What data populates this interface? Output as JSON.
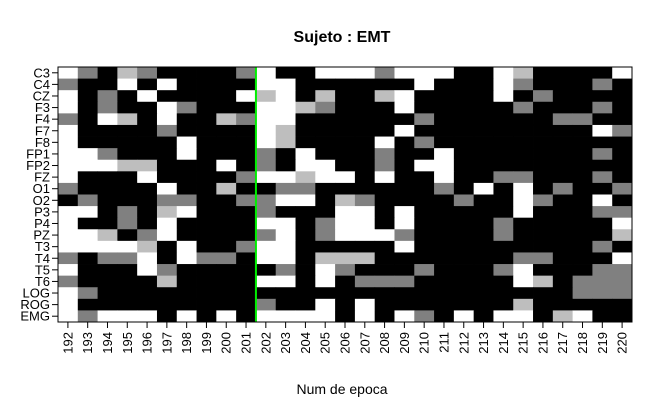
{
  "chart_data": {
    "type": "heatmap",
    "title": "Sujeto : EMT",
    "xlabel": "Num de epoca",
    "ylabel": "",
    "x": [
      "192",
      "193",
      "194",
      "195",
      "196",
      "197",
      "198",
      "199",
      "200",
      "201",
      "202",
      "203",
      "204",
      "205",
      "206",
      "207",
      "208",
      "209",
      "210",
      "211",
      "212",
      "213",
      "214",
      "215",
      "216",
      "217",
      "218",
      "219",
      "220"
    ],
    "y": [
      "C3",
      "C4",
      "CZ",
      "F3",
      "F4",
      "F7",
      "F8",
      "FP1",
      "FP2",
      "FZ",
      "O1",
      "O2",
      "P3",
      "P4",
      "PZ",
      "T3",
      "T4",
      "T5",
      "T6",
      "LOG",
      "ROG",
      "EMG"
    ],
    "palette": {
      "0": "#000000",
      "1": "#808080",
      "2": "#bebebe",
      "3": "#ffffff"
    },
    "values": [
      [
        3,
        1,
        0,
        2,
        1,
        0,
        0,
        0,
        0,
        1,
        3,
        0,
        0,
        3,
        3,
        3,
        1,
        3,
        3,
        3,
        0,
        0,
        3,
        2,
        0,
        0,
        0,
        0,
        3
      ],
      [
        1,
        0,
        0,
        3,
        0,
        3,
        0,
        0,
        0,
        0,
        3,
        3,
        0,
        0,
        0,
        0,
        0,
        0,
        3,
        0,
        0,
        0,
        3,
        1,
        0,
        0,
        0,
        1,
        0
      ],
      [
        3,
        0,
        1,
        0,
        3,
        0,
        0,
        0,
        0,
        3,
        2,
        3,
        0,
        2,
        0,
        0,
        2,
        3,
        0,
        0,
        0,
        0,
        3,
        0,
        1,
        0,
        0,
        0,
        0
      ],
      [
        3,
        0,
        1,
        0,
        0,
        3,
        1,
        0,
        0,
        0,
        3,
        3,
        2,
        1,
        0,
        0,
        0,
        3,
        0,
        0,
        0,
        0,
        0,
        1,
        0,
        0,
        0,
        1,
        0
      ],
      [
        1,
        0,
        3,
        2,
        0,
        3,
        0,
        0,
        2,
        1,
        3,
        3,
        0,
        0,
        0,
        0,
        0,
        0,
        1,
        0,
        0,
        0,
        0,
        0,
        0,
        1,
        1,
        0,
        0
      ],
      [
        3,
        0,
        0,
        0,
        0,
        1,
        0,
        0,
        0,
        0,
        3,
        2,
        0,
        0,
        0,
        0,
        0,
        3,
        0,
        0,
        0,
        0,
        0,
        0,
        0,
        0,
        0,
        3,
        1
      ],
      [
        3,
        0,
        0,
        0,
        0,
        0,
        3,
        0,
        0,
        0,
        3,
        2,
        0,
        0,
        0,
        0,
        3,
        0,
        1,
        0,
        0,
        0,
        0,
        0,
        0,
        0,
        0,
        0,
        0
      ],
      [
        3,
        3,
        1,
        0,
        0,
        0,
        3,
        0,
        0,
        0,
        1,
        0,
        3,
        0,
        0,
        0,
        1,
        0,
        0,
        3,
        0,
        0,
        0,
        0,
        0,
        0,
        0,
        1,
        0
      ],
      [
        3,
        3,
        3,
        2,
        2,
        0,
        0,
        0,
        3,
        0,
        1,
        0,
        3,
        3,
        0,
        0,
        1,
        0,
        3,
        3,
        0,
        0,
        0,
        0,
        0,
        0,
        0,
        0,
        0
      ],
      [
        3,
        0,
        0,
        0,
        3,
        0,
        0,
        0,
        0,
        1,
        3,
        3,
        2,
        3,
        3,
        0,
        3,
        0,
        0,
        3,
        0,
        0,
        1,
        1,
        0,
        0,
        0,
        1,
        0
      ],
      [
        1,
        0,
        0,
        0,
        0,
        3,
        0,
        0,
        2,
        0,
        0,
        1,
        1,
        0,
        0,
        0,
        0,
        0,
        0,
        1,
        0,
        3,
        0,
        3,
        0,
        1,
        0,
        0,
        1
      ],
      [
        0,
        1,
        0,
        0,
        0,
        1,
        1,
        0,
        0,
        1,
        1,
        3,
        3,
        0,
        2,
        1,
        0,
        0,
        0,
        0,
        1,
        0,
        0,
        3,
        1,
        0,
        0,
        3,
        0
      ],
      [
        3,
        3,
        0,
        1,
        0,
        2,
        3,
        0,
        0,
        0,
        1,
        0,
        0,
        0,
        3,
        3,
        0,
        3,
        0,
        0,
        0,
        0,
        0,
        3,
        0,
        0,
        0,
        1,
        1
      ],
      [
        3,
        0,
        0,
        1,
        0,
        3,
        0,
        0,
        0,
        0,
        3,
        3,
        0,
        1,
        3,
        3,
        0,
        3,
        0,
        0,
        0,
        0,
        1,
        0,
        0,
        0,
        0,
        0,
        3
      ],
      [
        3,
        3,
        2,
        0,
        1,
        3,
        0,
        0,
        0,
        0,
        1,
        3,
        0,
        1,
        3,
        3,
        3,
        1,
        0,
        0,
        0,
        0,
        1,
        0,
        0,
        0,
        0,
        0,
        2
      ],
      [
        3,
        3,
        3,
        3,
        2,
        0,
        3,
        0,
        0,
        1,
        3,
        3,
        0,
        0,
        0,
        0,
        0,
        3,
        0,
        0,
        0,
        0,
        0,
        0,
        0,
        0,
        0,
        1,
        0
      ],
      [
        1,
        0,
        1,
        1,
        3,
        0,
        3,
        1,
        1,
        0,
        3,
        3,
        0,
        2,
        2,
        2,
        0,
        0,
        0,
        0,
        0,
        0,
        0,
        1,
        1,
        0,
        0,
        0,
        3
      ],
      [
        3,
        0,
        0,
        0,
        3,
        1,
        0,
        0,
        0,
        0,
        0,
        1,
        0,
        3,
        1,
        0,
        0,
        0,
        1,
        0,
        0,
        0,
        1,
        3,
        0,
        0,
        0,
        1,
        1
      ],
      [
        1,
        0,
        0,
        0,
        0,
        2,
        0,
        0,
        0,
        0,
        3,
        3,
        0,
        3,
        0,
        1,
        1,
        1,
        0,
        0,
        0,
        0,
        0,
        3,
        2,
        0,
        1,
        1,
        1
      ],
      [
        3,
        1,
        0,
        0,
        0,
        0,
        0,
        0,
        0,
        0,
        0,
        0,
        0,
        0,
        0,
        0,
        0,
        0,
        0,
        0,
        0,
        0,
        0,
        0,
        0,
        0,
        1,
        1,
        1
      ],
      [
        3,
        0,
        0,
        0,
        0,
        0,
        0,
        0,
        0,
        0,
        1,
        0,
        0,
        3,
        0,
        3,
        0,
        0,
        0,
        0,
        0,
        0,
        0,
        2,
        0,
        0,
        0,
        0,
        0
      ],
      [
        3,
        1,
        3,
        3,
        3,
        0,
        3,
        0,
        3,
        0,
        3,
        3,
        3,
        3,
        0,
        3,
        0,
        3,
        1,
        0,
        3,
        0,
        3,
        3,
        0,
        2,
        3,
        0,
        0
      ]
    ],
    "marker": {
      "between_x": [
        "201",
        "202"
      ],
      "color": "#00ee00"
    },
    "grid": false,
    "legend": "none"
  }
}
